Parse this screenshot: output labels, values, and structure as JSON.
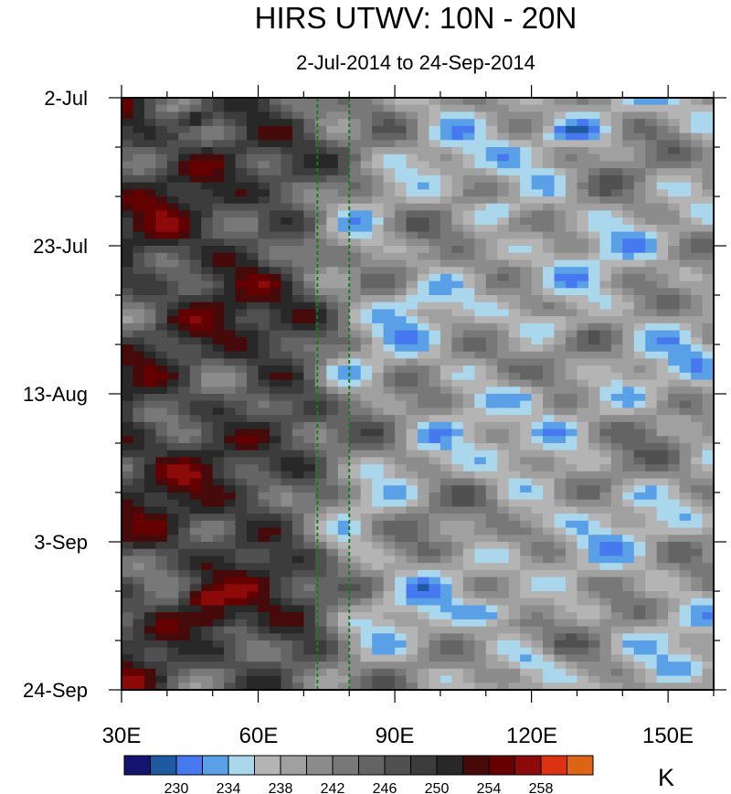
{
  "chart_data": {
    "type": "heatmap",
    "title": "HIRS UTWV: 10N - 20N",
    "subtitle": "2-Jul-2014 to 24-Sep-2014",
    "x_axis": {
      "range": [
        30,
        160
      ],
      "ticks": [
        30,
        60,
        90,
        120,
        150
      ],
      "tick_labels": [
        "30E",
        "60E",
        "90E",
        "120E",
        "150E"
      ]
    },
    "y_axis": {
      "range": [
        "2-Jul-2014",
        "24-Sep-2014"
      ],
      "tick_labels": [
        "2-Jul",
        "23-Jul",
        "13-Aug",
        "3-Sep",
        "24-Sep"
      ],
      "tick_day_offsets": [
        0,
        21,
        42,
        63,
        84
      ],
      "direction": "time increases downward"
    },
    "reference_lines": {
      "style": "dashed",
      "color": "#1a7a1a",
      "longitudes": [
        73,
        80
      ]
    },
    "colorbar": {
      "unit": "K",
      "labels": [
        "230",
        "234",
        "238",
        "242",
        "246",
        "250",
        "254",
        "258"
      ],
      "levels": [
        226,
        228,
        230,
        232,
        234,
        236,
        238,
        240,
        242,
        244,
        246,
        248,
        250,
        252,
        254,
        256,
        258,
        260
      ],
      "colors": [
        "#14146e",
        "#1e5aa0",
        "#4678f0",
        "#5aa0e6",
        "#aad7eb",
        "#b4b4b4",
        "#a0a0a0",
        "#8c8c8c",
        "#787878",
        "#646464",
        "#505050",
        "#3c3c3c",
        "#282828",
        "#460a0a",
        "#640000",
        "#8c0a0a",
        "#dc3214",
        "#dc6414"
      ]
    },
    "grid": false,
    "legend": "colorbar below plot"
  }
}
